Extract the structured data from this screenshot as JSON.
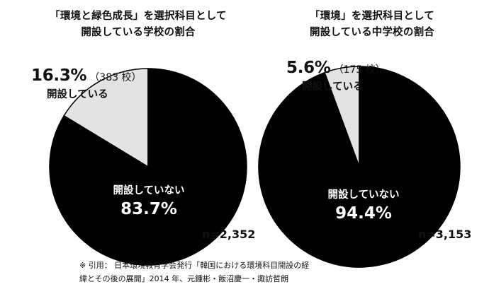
{
  "chart_data": [
    {
      "type": "pie",
      "title_lines": [
        "「環境と緑色成長」を選択科目として",
        "開設している学校の割合"
      ],
      "slices": [
        {
          "label": "開設している",
          "value": 16.3,
          "count_text": "（383 校）",
          "color": "#e3e3e3"
        },
        {
          "label": "開設していない",
          "value": 83.7,
          "color": "#000000"
        }
      ],
      "pct_texts": [
        "16.3%",
        "83.7%"
      ],
      "n_text": "n=2,352"
    },
    {
      "type": "pie",
      "title_lines": [
        "「環境」を選択科目として",
        "開設している中学校の割合"
      ],
      "slices": [
        {
          "label": "開設している",
          "value": 5.6,
          "count_text": "（175 校）",
          "color": "#e3e3e3"
        },
        {
          "label": "開設していない",
          "value": 94.4,
          "color": "#000000"
        }
      ],
      "pct_texts": [
        "5.6%",
        "94.4%"
      ],
      "n_text": "n=3,153"
    }
  ],
  "source_note": [
    "※ 引用： 日本環境教育学会発行「韓国における環境科目開設の経",
    "緯とその後の展開」2014 年、元鍾彬・飯沼慶一・諏訪哲朗"
  ]
}
